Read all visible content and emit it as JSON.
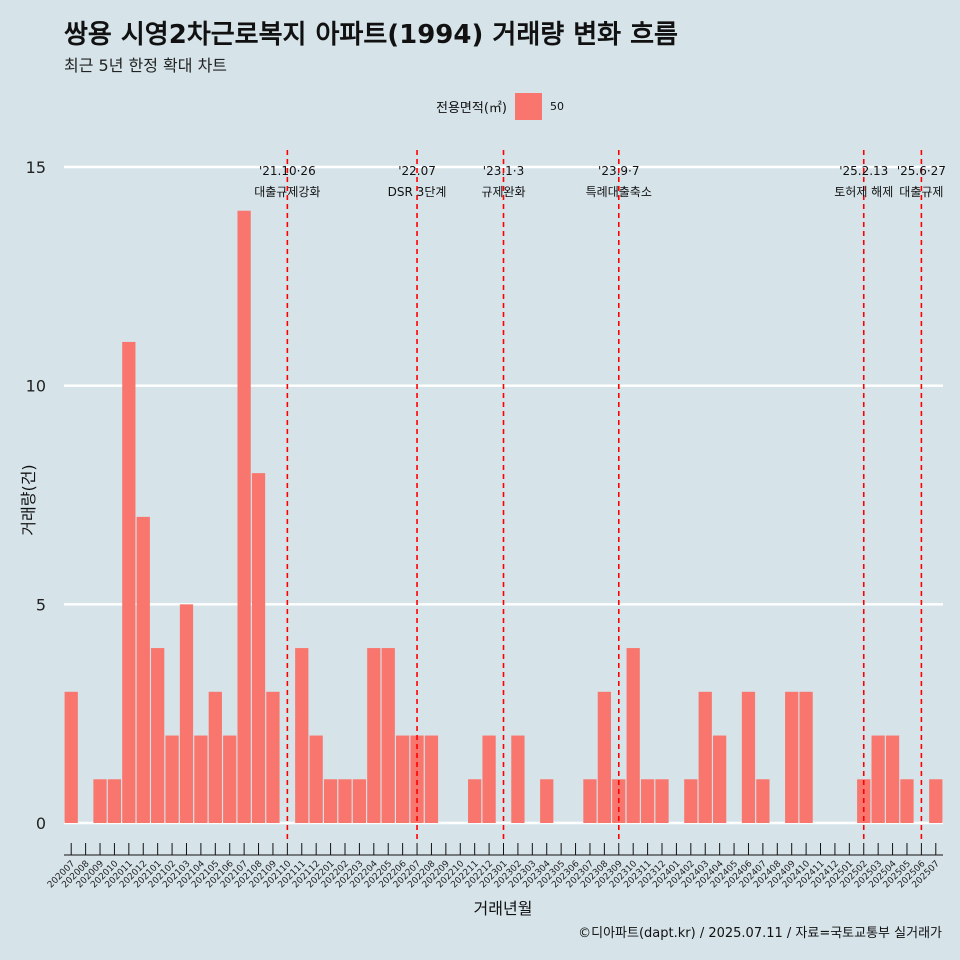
{
  "title": "쌍용 시영2차근로복지 아파트(1994) 거래량 변화 흐름",
  "subtitle": "최근 5년 한정 확대 차트",
  "caption": "©디아파트(dapt.kr) / 2025.07.11 / 자료=국토교통부 실거래가",
  "colors": {
    "bar": "#f8766d",
    "background": "#d6e4ea",
    "grid": "#ffffff",
    "event_line": "#ff0000"
  },
  "chart_data": {
    "type": "bar",
    "xlabel": "거래년월",
    "ylabel": "거래량(건)",
    "ylim": [
      0,
      15
    ],
    "yticks": [
      0,
      5,
      10,
      15
    ],
    "grid": "horizontal",
    "legend": {
      "title": "전용면적(㎡)",
      "placement": "top",
      "items": [
        {
          "name": "50",
          "color": "#f8766d"
        }
      ]
    },
    "categories": [
      "202007",
      "202008",
      "202009",
      "202010",
      "202011",
      "202012",
      "202101",
      "202102",
      "202103",
      "202104",
      "202105",
      "202106",
      "202107",
      "202108",
      "202109",
      "202110",
      "202111",
      "202112",
      "202201",
      "202202",
      "202203",
      "202204",
      "202205",
      "202206",
      "202207",
      "202208",
      "202209",
      "202210",
      "202211",
      "202212",
      "202301",
      "202302",
      "202303",
      "202304",
      "202305",
      "202306",
      "202307",
      "202308",
      "202309",
      "202310",
      "202311",
      "202312",
      "202401",
      "202402",
      "202403",
      "202404",
      "202405",
      "202406",
      "202407",
      "202408",
      "202409",
      "202410",
      "202411",
      "202412",
      "202501",
      "202502",
      "202503",
      "202504",
      "202505",
      "202506",
      "202507"
    ],
    "series": [
      {
        "name": "50",
        "values": [
          3,
          0,
          1,
          1,
          11,
          7,
          4,
          2,
          5,
          2,
          3,
          2,
          14,
          8,
          3,
          0,
          4,
          2,
          1,
          1,
          1,
          4,
          4,
          2,
          2,
          2,
          0,
          0,
          1,
          2,
          0,
          2,
          0,
          1,
          0,
          0,
          1,
          3,
          1,
          4,
          1,
          1,
          0,
          1,
          3,
          2,
          0,
          3,
          1,
          0,
          3,
          3,
          0,
          0,
          0,
          1,
          2,
          2,
          1,
          0,
          1
        ]
      }
    ],
    "annotations": [
      {
        "at": "202110",
        "date": "'21.10·26",
        "label": "대출규제강화"
      },
      {
        "at": "202207",
        "date": "'22.07",
        "label": "DSR 3단계"
      },
      {
        "at": "202301",
        "date": "'23.1·3",
        "label": "규제완화"
      },
      {
        "at": "202309",
        "date": "'23.9·7",
        "label": "특례대출축소"
      },
      {
        "at": "202502",
        "date": "'25.2.13",
        "label": "토허제 해제"
      },
      {
        "at": "202506",
        "date": "'25.6·27",
        "label": "대출규제"
      }
    ]
  }
}
